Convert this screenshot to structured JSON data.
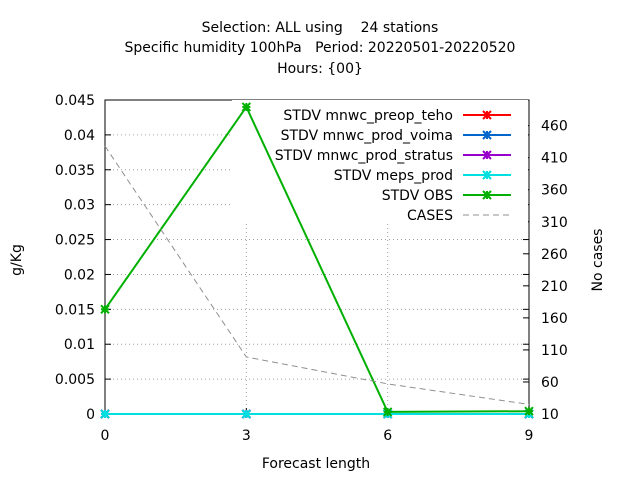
{
  "chart_data": {
    "type": "line",
    "title_lines": [
      "Selection: ALL using    24 stations",
      "Specific humidity 100hPa   Period: 20220501-20220520",
      "Hours: {00}"
    ],
    "xlabel": "Forecast length",
    "ylabel": "g/Kg",
    "y2label": "No cases",
    "x": [
      0,
      3,
      6,
      9
    ],
    "xlim": [
      0,
      9
    ],
    "ylim": [
      0,
      0.045
    ],
    "y2lim": [
      10,
      500
    ],
    "xticks": [
      0,
      3,
      6,
      9
    ],
    "yticks": [
      0,
      0.005,
      0.01,
      0.015,
      0.02,
      0.025,
      0.03,
      0.035,
      0.04,
      0.045
    ],
    "y2ticks": [
      10,
      60,
      110,
      160,
      210,
      260,
      310,
      360,
      410,
      460
    ],
    "grid": true,
    "legend_position": "top-right",
    "series": [
      {
        "name": "STDV mnwc_preop_teho",
        "color": "#ff0000",
        "axis": "y",
        "values": [
          0,
          0,
          0,
          0
        ]
      },
      {
        "name": "STDV mnwc_prod_voima",
        "color": "#0066cc",
        "axis": "y",
        "values": [
          0,
          0,
          0,
          0
        ]
      },
      {
        "name": "STDV mnwc_prod_stratus",
        "color": "#9900cc",
        "axis": "y",
        "values": [
          0,
          0,
          0,
          0
        ]
      },
      {
        "name": "STDV meps_prod",
        "color": "#00e0e0",
        "axis": "y",
        "values": [
          0,
          0,
          0,
          0
        ]
      },
      {
        "name": "STDV OBS",
        "color": "#00b000",
        "axis": "y",
        "values": [
          0.015,
          0.044,
          0.0003,
          0.0004
        ]
      },
      {
        "name": "CASES",
        "color": "#909090",
        "axis": "y2",
        "dashed": true,
        "values": [
          428,
          99,
          57,
          25
        ]
      }
    ]
  }
}
